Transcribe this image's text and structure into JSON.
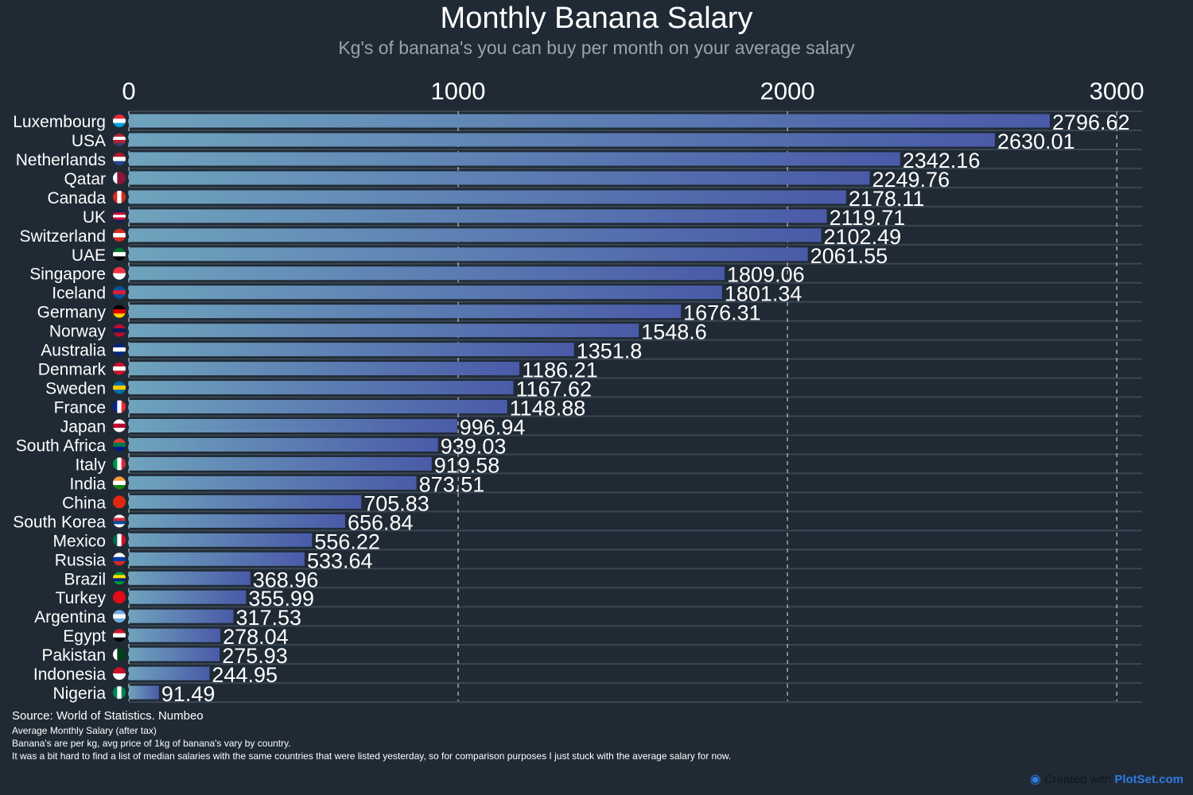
{
  "chart_data": {
    "type": "bar",
    "orientation": "horizontal",
    "title": "Monthly Banana Salary",
    "subtitle": "Kg's of banana's you can buy per month on your average salary",
    "xlim": [
      0,
      3077
    ],
    "xticks": [
      0,
      1000,
      2000,
      3000
    ],
    "grid": "vertical dashed",
    "bar_gradient": [
      "#6fa3bd",
      "#4a5aa8"
    ],
    "categories": [
      "Luxembourg",
      "USA",
      "Netherlands",
      "Qatar",
      "Canada",
      "UK",
      "Switzerland",
      "UAE",
      "Singapore",
      "Iceland",
      "Germany",
      "Norway",
      "Australia",
      "Denmark",
      "Sweden",
      "France",
      "Japan",
      "South Africa",
      "Italy",
      "India",
      "China",
      "South Korea",
      "Mexico",
      "Russia",
      "Brazil",
      "Turkey",
      "Argentina",
      "Egypt",
      "Pakistan",
      "Indonesia",
      "Nigeria"
    ],
    "values": [
      2796.62,
      2630.01,
      2342.16,
      2249.76,
      2178.11,
      2119.71,
      2102.49,
      2061.55,
      1809.06,
      1801.34,
      1676.31,
      1548.6,
      1351.8,
      1186.21,
      1167.62,
      1148.88,
      996.94,
      939.03,
      919.58,
      873.51,
      705.83,
      656.84,
      556.22,
      533.64,
      368.96,
      355.99,
      317.53,
      278.04,
      275.93,
      244.95,
      91.49
    ],
    "flags": [
      {
        "dir": "h",
        "colors": [
          "#ed2939",
          "#ffffff",
          "#00a1de"
        ]
      },
      {
        "dir": "h",
        "colors": [
          "#b22234",
          "#ffffff",
          "#b22234",
          "#3c3b6e"
        ]
      },
      {
        "dir": "h",
        "colors": [
          "#ae1c28",
          "#ffffff",
          "#21468b"
        ]
      },
      {
        "dir": "v",
        "colors": [
          "#ffffff",
          "#8a1538",
          "#8a1538"
        ]
      },
      {
        "dir": "v",
        "colors": [
          "#d52b1e",
          "#ffffff",
          "#d52b1e"
        ]
      },
      {
        "dir": "h",
        "colors": [
          "#012169",
          "#c8102e",
          "#ffffff",
          "#c8102e",
          "#012169"
        ]
      },
      {
        "dir": "h",
        "colors": [
          "#d52b1e",
          "#ffffff",
          "#d52b1e"
        ]
      },
      {
        "dir": "h",
        "colors": [
          "#00732f",
          "#ffffff",
          "#000000"
        ]
      },
      {
        "dir": "h",
        "colors": [
          "#ef3340",
          "#ffffff"
        ]
      },
      {
        "dir": "h",
        "colors": [
          "#02529c",
          "#dc1e35",
          "#02529c"
        ]
      },
      {
        "dir": "h",
        "colors": [
          "#000000",
          "#dd0000",
          "#ffce00"
        ]
      },
      {
        "dir": "h",
        "colors": [
          "#ba0c2f",
          "#00205b",
          "#ba0c2f"
        ]
      },
      {
        "dir": "h",
        "colors": [
          "#00247d",
          "#ffffff",
          "#00247d"
        ]
      },
      {
        "dir": "h",
        "colors": [
          "#c8102e",
          "#ffffff",
          "#c8102e"
        ]
      },
      {
        "dir": "h",
        "colors": [
          "#006aa7",
          "#fecc00",
          "#006aa7"
        ]
      },
      {
        "dir": "v",
        "colors": [
          "#002395",
          "#ffffff",
          "#ed2939"
        ]
      },
      {
        "dir": "h",
        "colors": [
          "#ffffff",
          "#bc002d",
          "#ffffff"
        ]
      },
      {
        "dir": "h",
        "colors": [
          "#e03c31",
          "#007749",
          "#001489"
        ]
      },
      {
        "dir": "v",
        "colors": [
          "#009246",
          "#ffffff",
          "#ce2b37"
        ]
      },
      {
        "dir": "h",
        "colors": [
          "#ff9933",
          "#ffffff",
          "#138808"
        ]
      },
      {
        "dir": "h",
        "colors": [
          "#de2910",
          "#de2910"
        ]
      },
      {
        "dir": "h",
        "colors": [
          "#ffffff",
          "#cd2e3a",
          "#0047a0",
          "#ffffff"
        ]
      },
      {
        "dir": "v",
        "colors": [
          "#006847",
          "#ffffff",
          "#ce1126"
        ]
      },
      {
        "dir": "h",
        "colors": [
          "#ffffff",
          "#0039a6",
          "#d52b1e"
        ]
      },
      {
        "dir": "h",
        "colors": [
          "#009c3b",
          "#ffdf00",
          "#002776",
          "#009c3b"
        ]
      },
      {
        "dir": "h",
        "colors": [
          "#e30a17",
          "#e30a17"
        ]
      },
      {
        "dir": "h",
        "colors": [
          "#74acdf",
          "#ffffff",
          "#74acdf"
        ]
      },
      {
        "dir": "h",
        "colors": [
          "#ce1126",
          "#ffffff",
          "#000000"
        ]
      },
      {
        "dir": "v",
        "colors": [
          "#ffffff",
          "#01411c",
          "#01411c"
        ]
      },
      {
        "dir": "h",
        "colors": [
          "#ce1126",
          "#ffffff"
        ]
      },
      {
        "dir": "v",
        "colors": [
          "#008751",
          "#ffffff",
          "#008751"
        ]
      }
    ]
  },
  "footer": {
    "source": "Source: World of Statistics. Numbeo",
    "notes": [
      "Average Monthly Salary (after tax)",
      "Banana's are per kg, avg price of 1kg of banana's vary by country.",
      "It was a bit hard to find a list of median salaries with the same countries that were listed yesterday, so for comparison purposes I just stuck with the average salary for now."
    ],
    "credit_prefix": "Created with",
    "credit_brand": "PlotSet.com"
  }
}
